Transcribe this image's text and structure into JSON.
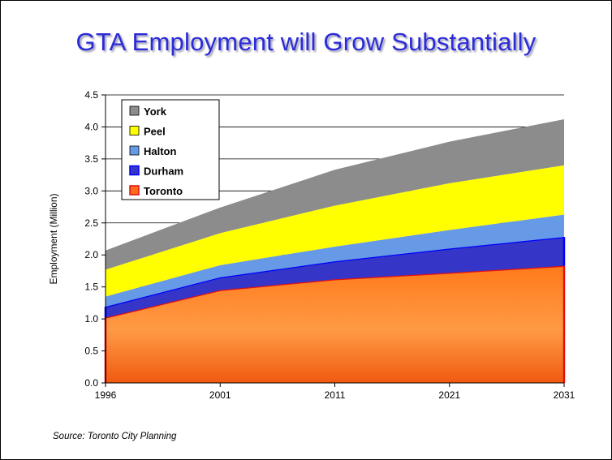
{
  "title": "GTA Employment will Grow Substantially",
  "source": "Source: Toronto City Planning",
  "chart_data": {
    "type": "area",
    "stacked": true,
    "categories": [
      "1996",
      "2001",
      "2011",
      "2021",
      "2031"
    ],
    "ylabel": "Employment (Million)",
    "ylim": [
      0,
      4.5
    ],
    "yticks": [
      "0.0",
      "0.5",
      "1.0",
      "1.5",
      "2.0",
      "2.5",
      "3.0",
      "3.5",
      "4.0",
      "4.5"
    ],
    "grid": true,
    "legend_position": "top-left",
    "series": [
      {
        "name": "Toronto",
        "values": [
          1.02,
          1.45,
          1.62,
          1.72,
          1.83
        ],
        "color": "#ff8a2a",
        "stroke": "#e21010"
      },
      {
        "name": "Durham",
        "values": [
          0.17,
          0.2,
          0.28,
          0.38,
          0.45
        ],
        "color": "#3535c8",
        "stroke": "#0000ff"
      },
      {
        "name": "Halton",
        "values": [
          0.16,
          0.19,
          0.23,
          0.29,
          0.35
        ],
        "color": "#6699e6",
        "stroke": "#6699e6"
      },
      {
        "name": "Peel",
        "values": [
          0.42,
          0.5,
          0.64,
          0.73,
          0.77
        ],
        "color": "#ffff00",
        "stroke": "#ffff00"
      },
      {
        "name": "York",
        "values": [
          0.3,
          0.4,
          0.56,
          0.65,
          0.72
        ],
        "color": "#8c8c8c",
        "stroke": "#8c8c8c"
      }
    ],
    "legend_order": [
      "York",
      "Peel",
      "Halton",
      "Durham",
      "Toronto"
    ]
  }
}
